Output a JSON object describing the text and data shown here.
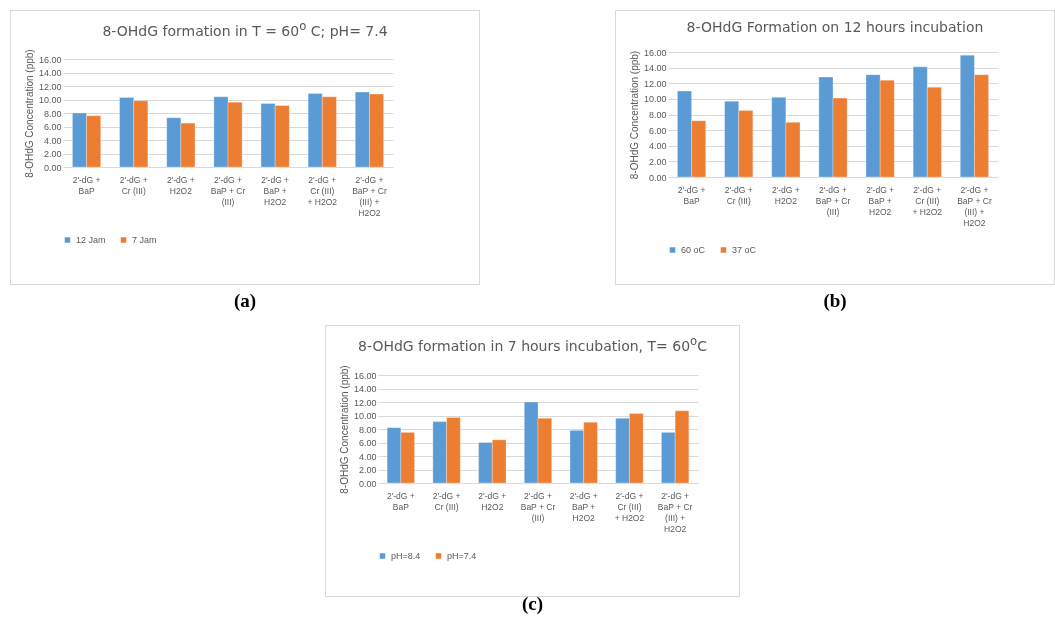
{
  "chart_data": [
    {
      "type": "bar",
      "title": "8-OHdG formation in T = 60$^{o}$ C; pH= 7.4",
      "ylabel": "8-OHdG Concentration (ppb)",
      "categories": [
        "2'-dG + BaP",
        "2'-dG + Cr (III)",
        "2'-dG + H2O2",
        "2'-dG + BaP + Cr (III)",
        "2'-dG + BaP + H2O2",
        "2'-dG + Cr (III) + H2O2",
        "2'-dG + BaP + Cr (III) + H2O2"
      ],
      "series": [
        {
          "name": "12 Jam",
          "color": "#5b9bd5",
          "values": [
            8.0,
            10.3,
            7.3,
            10.4,
            9.4,
            10.9,
            11.1
          ]
        },
        {
          "name": "7 Jam",
          "color": "#ed7d31",
          "values": [
            7.6,
            9.8,
            6.5,
            9.6,
            9.1,
            10.4,
            10.8
          ]
        }
      ],
      "ylim": [
        0,
        16
      ],
      "yticks": [
        {
          "value": 0,
          "label": "0.00"
        },
        {
          "value": 2,
          "label": "2.00"
        },
        {
          "value": 4,
          "label": "4.00"
        },
        {
          "value": 6,
          "label": "6.00"
        },
        {
          "value": 8,
          "label": "8.00"
        },
        {
          "value": 10,
          "label": "10.00"
        },
        {
          "value": 12,
          "label": "12.00"
        },
        {
          "value": 14,
          "label": "14.00"
        },
        {
          "value": 16,
          "label": "16.00"
        }
      ],
      "grid": "y",
      "legend": "bottom",
      "annotations": [
        "(a)"
      ]
    },
    {
      "type": "bar",
      "title": "8-OHdG Formation on 12 hours incubation",
      "ylabel": "8-OHdG  Concentration (ppb)",
      "categories": [
        "2'-dG + BaP",
        "2'-dG + Cr (III)",
        "2'-dG + H2O2",
        "2'-dG + BaP + Cr (III)",
        "2'-dG + BaP + H2O2",
        "2'-dG + Cr (III) + H2O2",
        "2'-dG + BaP + Cr (III) + H2O2"
      ],
      "series": [
        {
          "name": "60 oC",
          "color": "#5b9bd5",
          "values": [
            11.0,
            9.7,
            10.2,
            12.8,
            13.1,
            14.1,
            15.6
          ]
        },
        {
          "name": "37 oC",
          "color": "#ed7d31",
          "values": [
            7.2,
            8.5,
            7.0,
            10.1,
            12.4,
            11.5,
            13.1
          ]
        }
      ],
      "ylim": [
        0,
        16
      ],
      "yticks": [
        {
          "value": 0,
          "label": "0.00"
        },
        {
          "value": 2,
          "label": "2.00"
        },
        {
          "value": 4,
          "label": "4.00"
        },
        {
          "value": 6,
          "label": "6.00"
        },
        {
          "value": 8,
          "label": "8.00"
        },
        {
          "value": 10,
          "label": "10.00"
        },
        {
          "value": 12,
          "label": "12.00"
        },
        {
          "value": 14,
          "label": "14.00"
        },
        {
          "value": 16,
          "label": "16.00"
        }
      ],
      "grid": "y",
      "legend": "bottom",
      "annotations": [
        "(b)"
      ]
    },
    {
      "type": "bar",
      "title": "8-OHdG formation in 7 hours incubation, T= 60$^{o}$C",
      "ylabel": "8-OHdG  Concentration (ppb)",
      "categories": [
        "2'-dG + BaP",
        "2'-dG + Cr (III)",
        "2'-dG + H2O2",
        "2'-dG + BaP + Cr (III)",
        "2'-dG + BaP + H2O2",
        "2'-dG + Cr (III) + H2O2",
        "2'-dG + BaP + Cr (III) + H2O2"
      ],
      "series": [
        {
          "name": "pH=8.4",
          "color": "#5b9bd5",
          "values": [
            8.2,
            9.1,
            6.0,
            12.0,
            7.8,
            9.6,
            7.5
          ]
        },
        {
          "name": "pH=7.4",
          "color": "#ed7d31",
          "values": [
            7.5,
            9.7,
            6.4,
            9.6,
            9.0,
            10.3,
            10.7
          ]
        }
      ],
      "ylim": [
        0,
        16
      ],
      "yticks": [
        {
          "value": 0,
          "label": "0.00"
        },
        {
          "value": 2,
          "label": "2.00"
        },
        {
          "value": 4,
          "label": "4.00"
        },
        {
          "value": 6,
          "label": "6.00"
        },
        {
          "value": 8,
          "label": "8.00"
        },
        {
          "value": 10,
          "label": "10.00"
        },
        {
          "value": 12,
          "label": "12.00"
        },
        {
          "value": 14,
          "label": "14.00"
        },
        {
          "value": 16,
          "label": "16.00"
        }
      ],
      "grid": "y",
      "legend": "bottom",
      "annotations": [
        "(c)"
      ]
    }
  ]
}
